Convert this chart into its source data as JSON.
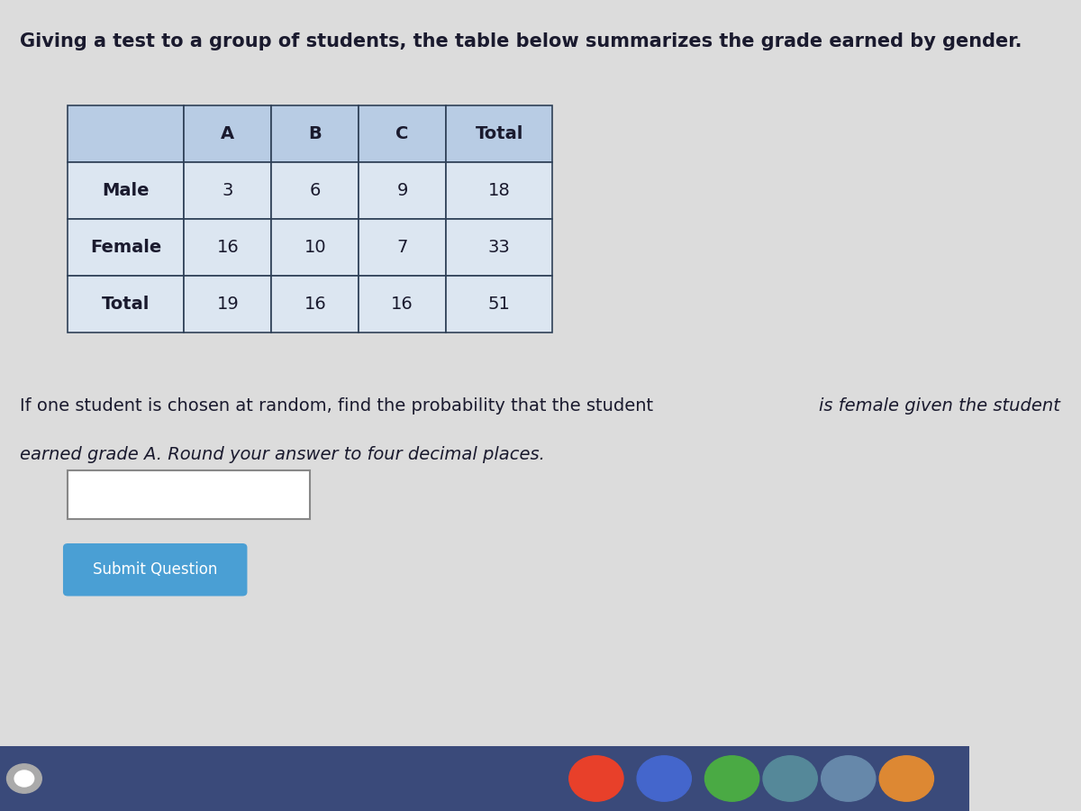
{
  "title": "Giving a test to a group of students, the table below summarizes the grade earned by gender.",
  "table_headers": [
    "",
    "A",
    "B",
    "C",
    "Total"
  ],
  "table_rows": [
    [
      "Male",
      "3",
      "6",
      "9",
      "18"
    ],
    [
      "Female",
      "16",
      "10",
      "7",
      "33"
    ],
    [
      "Total",
      "19",
      "16",
      "16",
      "51"
    ]
  ],
  "question_text": "If one student is chosen at random, find the probability that the student ",
  "question_italic": "is female given the student\nearned grade A.",
  "question_suffix": " Round your answer to four decimal places.",
  "bg_color": "#dcdcdc",
  "table_header_bg": "#b8cce4",
  "table_row_bg": "#dce6f1",
  "table_alt_bg": "#ffffff",
  "table_border_color": "#2e4057",
  "text_color": "#1a1a2e",
  "button_color": "#4a9fd4",
  "button_text": "Submit Question",
  "input_box_color": "#ffffff",
  "taskbar_color": "#3a4a7a",
  "title_fontsize": 15,
  "table_fontsize": 14,
  "question_fontsize": 14
}
